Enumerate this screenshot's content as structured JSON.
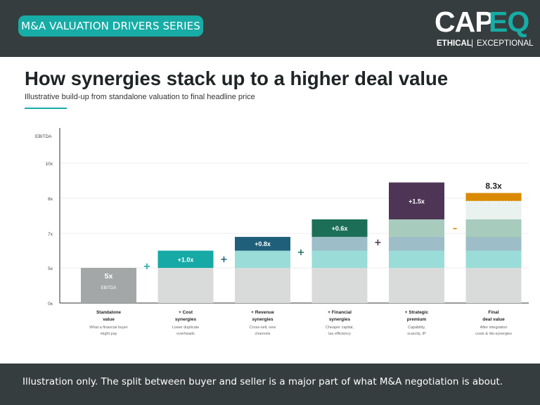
{
  "header": {
    "series_label": "M&A VALUATION DRIVERS SERIES",
    "logo": {
      "left": "CAP",
      "right": "EQ",
      "tagline_left": "ETHICAL",
      "tagline_sep": "|",
      "tagline_right": "EXCEPTIONAL"
    }
  },
  "title": "How synergies stack up to a higher deal value",
  "subtitle": "Illustrative build-up from standalone valuation to final headline price",
  "footer": {
    "note": "Illustration only. The split between buyer and seller is a major part of what M&A negotiation is about."
  },
  "colors": {
    "dark_bar": "#363d3e",
    "teal": "#17aca6",
    "cost": "#16a9a5",
    "revenue": "#1f5f7a",
    "financial": "#1c6f56",
    "strategic": "#4e3556",
    "final": "#d98a00",
    "standalone": "#a4a7a8",
    "base": "#d9dbdb"
  },
  "chart_data": {
    "type": "bar",
    "subtype": "stacked-waterfall",
    "ylabel": "EBITDA",
    "yticks": [
      "0x",
      "5x",
      "7x",
      "8x",
      "10x"
    ],
    "categories": [
      {
        "line1": "Standalone",
        "line2": "value",
        "desc1": "What a financial buyer",
        "desc2": "might pay"
      },
      {
        "line1": "+ Cost",
        "line2": "synergies",
        "desc1": "Lower duplicate",
        "desc2": "overheads"
      },
      {
        "line1": "+ Revenue",
        "line2": "synergies",
        "desc1": "Cross-sell, new",
        "desc2": "channels"
      },
      {
        "line1": "+ Financial",
        "line2": "synergies",
        "desc1": "Cheaper capital,",
        "desc2": "tax efficiency"
      },
      {
        "line1": "+ Strategic",
        "line2": "premium",
        "desc1": "Capability,",
        "desc2": "scarcity, IP"
      },
      {
        "line1": "Final",
        "line2": "deal value",
        "desc1": "After integration",
        "desc2": "costs & dis-synergies"
      }
    ],
    "components": [
      {
        "name": "Standalone",
        "value": 5.0,
        "label": "5x",
        "sublabel": "EBITDA"
      },
      {
        "name": "Cost synergies",
        "value": 1.0,
        "label": "+1.0x"
      },
      {
        "name": "Revenue synergies",
        "value": 0.8,
        "label": "+0.8x"
      },
      {
        "name": "Financial synergies",
        "value": 0.6,
        "label": "+0.6x"
      },
      {
        "name": "Strategic premium",
        "value": 1.5,
        "label": "+1.5x"
      }
    ],
    "final": {
      "value": 8.3,
      "label": "8.3x"
    },
    "operators": [
      "+",
      "+",
      "+",
      "+",
      "–"
    ]
  }
}
